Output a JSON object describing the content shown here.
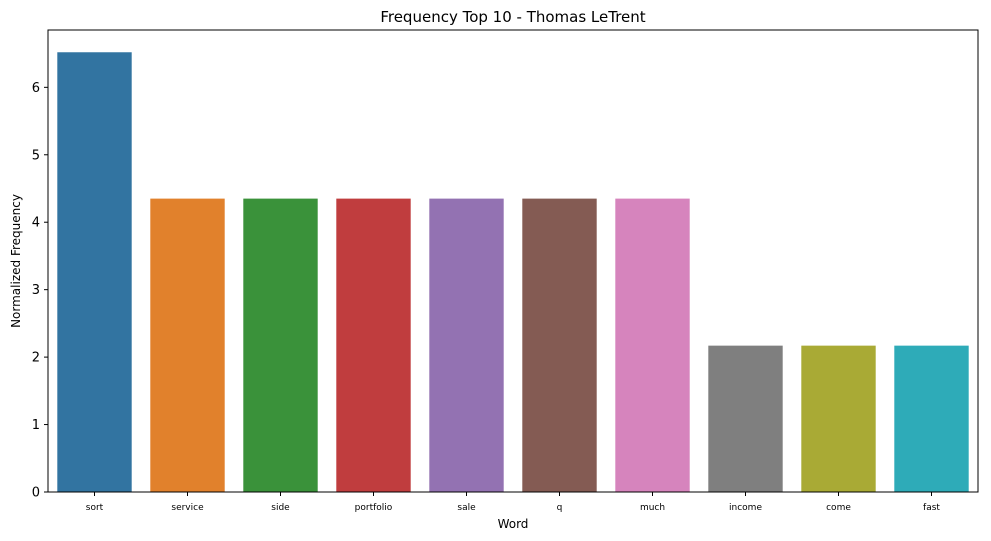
{
  "chart_data": {
    "type": "bar",
    "title": "Frequency Top 10 - Thomas LeTrent",
    "xlabel": "Word",
    "ylabel": "Normalized Frequency",
    "categories": [
      "sort",
      "service",
      "side",
      "portfolio",
      "sale",
      "q",
      "much",
      "income",
      "come",
      "fast"
    ],
    "values": [
      6.52,
      4.35,
      4.35,
      4.35,
      4.35,
      4.35,
      4.35,
      2.17,
      2.17,
      2.17
    ],
    "colors": [
      "#3274a1",
      "#e1812c",
      "#3a923a",
      "#c03d3e",
      "#9372b2",
      "#845b53",
      "#d684bd",
      "#7f7f7f",
      "#a9aa35",
      "#2eabb8"
    ],
    "ylim": [
      0,
      6.85
    ],
    "yticks": [
      0,
      1,
      2,
      3,
      4,
      5,
      6
    ],
    "grid": false,
    "legend": "none"
  }
}
